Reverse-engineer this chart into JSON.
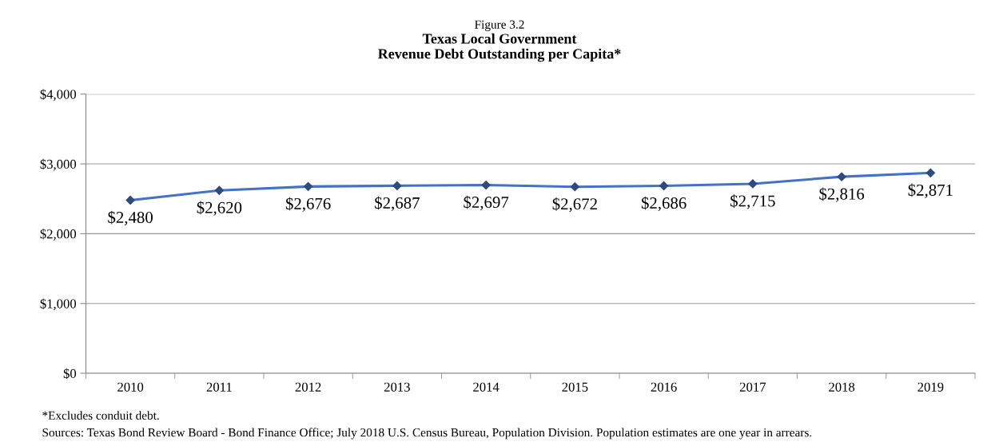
{
  "chart_data": {
    "type": "line",
    "subtitle": "Figure 3.2",
    "title": "Texas Local Government\nRevenue Debt Outstanding per Capita*",
    "categories": [
      "2010",
      "2011",
      "2012",
      "2013",
      "2014",
      "2015",
      "2016",
      "2017",
      "2018",
      "2019"
    ],
    "series": [
      {
        "color": "#4472c4",
        "values": [
          2480,
          2620,
          2676,
          2687,
          2697,
          2672,
          2686,
          2715,
          2816,
          2871
        ]
      }
    ],
    "value_labels": [
      "$2,480",
      "$2,620",
      "$2,676",
      "$2,687",
      "$2,697",
      "$2,672",
      "$2,686",
      "$2,715",
      "$2,816",
      "$2,871"
    ],
    "ylim": [
      0,
      4000
    ],
    "yticks": [
      {
        "value": 0,
        "label": "$0"
      },
      {
        "value": 1000,
        "label": "$1,000"
      },
      {
        "value": 2000,
        "label": "$2,000"
      },
      {
        "value": 3000,
        "label": "$3,000"
      },
      {
        "value": 4000,
        "label": "$4,000"
      }
    ],
    "grid": "y",
    "marker": "diamond",
    "line_style": "solid",
    "annotations": [
      "*Excludes conduit debt.",
      "Sources: Texas Bond Review Board - Bond Finance Office; July 2018 U.S. Census Bureau, Population Division. Population estimates are one year in arrears."
    ]
  }
}
